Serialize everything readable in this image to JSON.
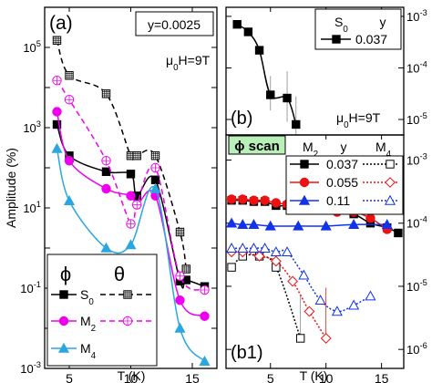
{
  "chart_data": [
    {
      "type": "line",
      "panel_label": "(a)",
      "annotation_box": "y=0.0025",
      "annotation": "μ0H=9T",
      "xlabel": "T (K)",
      "ylabel": "Amplitude (%)",
      "xlim": [
        3,
        17
      ],
      "ylim": [
        0.001,
        1000000
      ],
      "yscale": "log",
      "xticks": [
        "5",
        "10",
        "15"
      ],
      "yticks": [
        "10^-3",
        "10^-1",
        "10^1",
        "10^3",
        "10^5"
      ],
      "legend": {
        "headers": [
          "ϕ",
          "θ"
        ],
        "entries": [
          "S0",
          "M2",
          "M4"
        ]
      },
      "series": [
        {
          "name": "S0",
          "style": "solid",
          "color": "#000000",
          "marker": "square",
          "points": [
            [
              4,
              1200.0
            ],
            [
              5,
              200.0
            ],
            [
              8,
              80.0
            ],
            [
              10,
              70.0
            ],
            [
              10.5,
              20.0
            ],
            [
              12,
              50.0
            ],
            [
              14,
              0.15
            ],
            [
              14.5,
              0.16
            ],
            [
              16,
              0.11
            ]
          ]
        },
        {
          "name": "S0 θ",
          "style": "dashed",
          "color": "#000000",
          "marker": "boxed-plus",
          "points": [
            [
              4,
              150000.0
            ],
            [
              5,
              20000.0
            ],
            [
              8,
              7000.0
            ],
            [
              10,
              200.0
            ],
            [
              10.5,
              200.0
            ],
            [
              12,
              200.0
            ],
            [
              14,
              2.5
            ],
            [
              14.5,
              0.3
            ]
          ]
        },
        {
          "name": "M2",
          "style": "solid",
          "color": "#ee00ee",
          "marker": "circle",
          "points": [
            [
              4,
              2500.0
            ],
            [
              5,
              150.0
            ],
            [
              8,
              30.0
            ],
            [
              10,
              20.0
            ],
            [
              10.5,
              12.0
            ],
            [
              12,
              20.0
            ],
            [
              14,
              0.05
            ],
            [
              16,
              0.02
            ]
          ]
        },
        {
          "name": "M2 θ",
          "style": "dashed",
          "color": "#ee00ee",
          "marker": "open-circle",
          "points": [
            [
              4,
              15000.0
            ],
            [
              5,
              5000.0
            ],
            [
              8,
              150.0
            ],
            [
              10,
              4.0
            ],
            [
              10.5,
              12.0
            ],
            [
              12,
              100.0
            ],
            [
              14,
              0.2
            ],
            [
              16,
              0.09
            ]
          ]
        },
        {
          "name": "M4",
          "style": "solid",
          "color": "#2aa6e0",
          "marker": "triangle",
          "points": [
            [
              4,
              300.0
            ],
            [
              5,
              15.0
            ],
            [
              8,
              1.0
            ],
            [
              10,
              1.2
            ],
            [
              12,
              30.0
            ],
            [
              14,
              0.01
            ],
            [
              16,
              0.0015
            ]
          ]
        }
      ]
    },
    {
      "type": "line",
      "panel_label": "(b)",
      "annotation": "μ0H=9T",
      "legend": {
        "headers": [
          "S0",
          "y"
        ],
        "entries": [
          "0.037"
        ]
      },
      "xlim": [
        1,
        17
      ],
      "ylim": [
        5e-06,
        0.0015
      ],
      "yscale": "log",
      "yticks": [
        "10^-5",
        "10^-4",
        "10^-3"
      ],
      "series": [
        {
          "name": "0.037",
          "style": "solid",
          "color": "#000000",
          "marker": "square",
          "points": [
            [
              2,
              0.0007
            ],
            [
              3,
              0.0005
            ],
            [
              4,
              0.00022
            ],
            [
              5,
              3e-05
            ],
            [
              6.5,
              2.6e-05
            ],
            [
              7.3,
              8e-06
            ]
          ],
          "error_upper": [
            0,
            0,
            0,
            4e-05,
            6e-05,
            2e-05
          ],
          "error_lower": [
            0,
            0,
            0,
            1.5e-05,
            1.7e-05,
            4e-06
          ]
        }
      ]
    },
    {
      "type": "line",
      "panel_label": "(b1)",
      "tag": "ϕ scan",
      "xlabel": "T (K)",
      "xlim": [
        1,
        17
      ],
      "ylim": [
        5e-07,
        0.0025
      ],
      "yscale": "log",
      "xticks": [
        "5",
        "10",
        "15"
      ],
      "yticks": [
        "10^-6",
        "10^-5",
        "10^-4",
        "10^-3"
      ],
      "legend": {
        "headers": [
          "M2",
          "y",
          "M4"
        ],
        "entries": [
          "0.037",
          "0.055",
          "0.11"
        ]
      },
      "series": [
        {
          "name": "0.037",
          "style": "solid",
          "color": "#000000",
          "marker": "square",
          "points": [
            [
              1.5,
              0.00023
            ],
            [
              2.5,
              0.00023
            ],
            [
              3.5,
              0.00022
            ],
            [
              4.5,
              0.00022
            ],
            [
              5.5,
              0.00019
            ],
            [
              6.5,
              0.00019
            ],
            [
              7.5,
              0.00019
            ],
            [
              8.5,
              0.00019
            ],
            [
              9.5,
              0.00018
            ],
            [
              11,
              0.00016
            ],
            [
              12.5,
              0.00014
            ],
            [
              14,
              0.0001
            ],
            [
              15.5,
              8.5e-05
            ],
            [
              16.5,
              7e-05
            ]
          ]
        },
        {
          "name": "0.055",
          "style": "solid",
          "color": "#ee1111",
          "marker": "circle",
          "points": [
            [
              1.5,
              0.00024
            ],
            [
              2.5,
              0.00024
            ],
            [
              3.5,
              0.00023
            ],
            [
              4.5,
              0.00023
            ],
            [
              5.5,
              0.00021
            ],
            [
              6.5,
              0.0002
            ],
            [
              7.5,
              0.00019
            ],
            [
              8.5,
              0.00019
            ],
            [
              9.5,
              0.00018
            ],
            [
              11,
              0.00015
            ],
            [
              12.5,
              0.00015
            ],
            [
              14,
              0.00012
            ],
            [
              15.5,
              8e-05
            ]
          ]
        },
        {
          "name": "0.11",
          "style": "solid",
          "color": "#1133ee",
          "marker": "triangle",
          "points": [
            [
              1.5,
              0.0001
            ],
            [
              2.5,
              9.5e-05
            ],
            [
              3.5,
              9.5e-05
            ],
            [
              5,
              9e-05
            ],
            [
              7.5,
              9e-05
            ],
            [
              10,
              9e-05
            ],
            [
              12.5,
              9.5e-05
            ],
            [
              15.5,
              9.5e-05
            ]
          ]
        },
        {
          "name": "0.037 M4",
          "style": "dotted",
          "color": "#000000",
          "marker": "open-square",
          "points": [
            [
              1.5,
              2e-05
            ],
            [
              2.5,
              3e-05
            ],
            [
              4,
              3e-05
            ],
            [
              5.5,
              2e-05
            ],
            [
              7.7,
              1.5e-06
            ]
          ],
          "error_upper": [
            0,
            0,
            0,
            0,
            6e-06
          ],
          "error_lower": [
            0,
            0,
            0,
            0,
            0
          ]
        },
        {
          "name": "0.055 M4",
          "style": "dotted",
          "color": "#ee1111",
          "marker": "open-diamond",
          "points": [
            [
              1.5,
              3.5e-05
            ],
            [
              2.5,
              3.5e-05
            ],
            [
              4,
              3e-05
            ],
            [
              5.5,
              2.5e-05
            ],
            [
              7,
              1.2e-05
            ],
            [
              8.5,
              4e-06
            ],
            [
              10,
              1.5e-06
            ]
          ],
          "error_upper": [
            0,
            0,
            0,
            0,
            0,
            0,
            8e-06
          ],
          "error_lower": [
            0,
            0,
            0,
            0,
            0,
            0,
            0
          ]
        },
        {
          "name": "0.11 M4",
          "style": "dotted",
          "color": "#1133ee",
          "marker": "open-triangle",
          "points": [
            [
              1.5,
              4e-05
            ],
            [
              2.5,
              4e-05
            ],
            [
              3.5,
              4e-05
            ],
            [
              4.5,
              4e-05
            ],
            [
              5.5,
              3.5e-05
            ],
            [
              6.5,
              3.5e-05
            ],
            [
              8,
              1.5e-05
            ],
            [
              9.5,
              6e-06
            ],
            [
              11,
              4e-06
            ],
            [
              12.5,
              5e-06
            ],
            [
              14,
              7e-06
            ]
          ]
        }
      ]
    }
  ]
}
